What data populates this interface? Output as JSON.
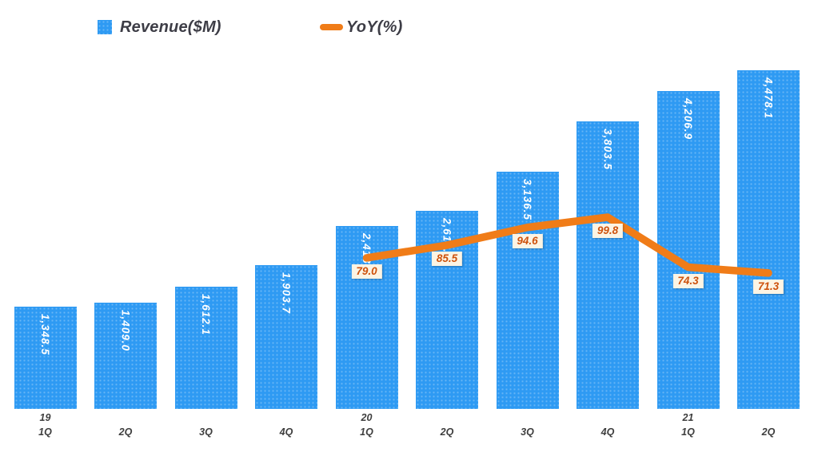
{
  "chart_data": {
    "type": "combo",
    "title": "",
    "grid": false,
    "legend_position": "top-left",
    "x_axis_note": "quarters, year shown above 1Q of each year",
    "categories": [
      {
        "year": "19",
        "quarter": "1Q"
      },
      {
        "year": "",
        "quarter": "2Q"
      },
      {
        "year": "",
        "quarter": "3Q"
      },
      {
        "year": "",
        "quarter": "4Q"
      },
      {
        "year": "20",
        "quarter": "1Q"
      },
      {
        "year": "",
        "quarter": "2Q"
      },
      {
        "year": "",
        "quarter": "3Q"
      },
      {
        "year": "",
        "quarter": "4Q"
      },
      {
        "year": "21",
        "quarter": "1Q"
      },
      {
        "year": "",
        "quarter": "2Q"
      }
    ],
    "series": [
      {
        "name": "Revenue($M)",
        "type": "bar",
        "color": "#2E9AF3",
        "values": [
          1348.5,
          1409.0,
          1612.1,
          1903.7,
          2413.6,
          2614.1,
          3136.5,
          3803.5,
          4206.9,
          4478.1
        ],
        "labels": [
          "1,348.5",
          "1,409.0",
          "1,612.1",
          "1,903.7",
          "2,413.6",
          "2,614.1",
          "3,136.5",
          "3,803.5",
          "4,206.9",
          "4,478.1"
        ],
        "ylim": [
          0,
          4478.1
        ]
      },
      {
        "name": "YoY(%)",
        "type": "line",
        "color": "#F07C18",
        "values": [
          null,
          null,
          null,
          null,
          79.0,
          85.5,
          94.6,
          99.8,
          74.3,
          71.3
        ],
        "labels": [
          "",
          "",
          "",
          "",
          "79.0",
          "85.5",
          "94.6",
          "99.8",
          "74.3",
          "71.3"
        ],
        "label_text_color": "#CE520D",
        "label_bg_color": "#FCF4E4"
      }
    ]
  },
  "legend": {
    "items": [
      {
        "label": "Revenue($M)",
        "marker": "square",
        "color": "#2E9AF3"
      },
      {
        "label": "YoY(%)",
        "marker": "line",
        "color": "#F07C18"
      }
    ]
  }
}
